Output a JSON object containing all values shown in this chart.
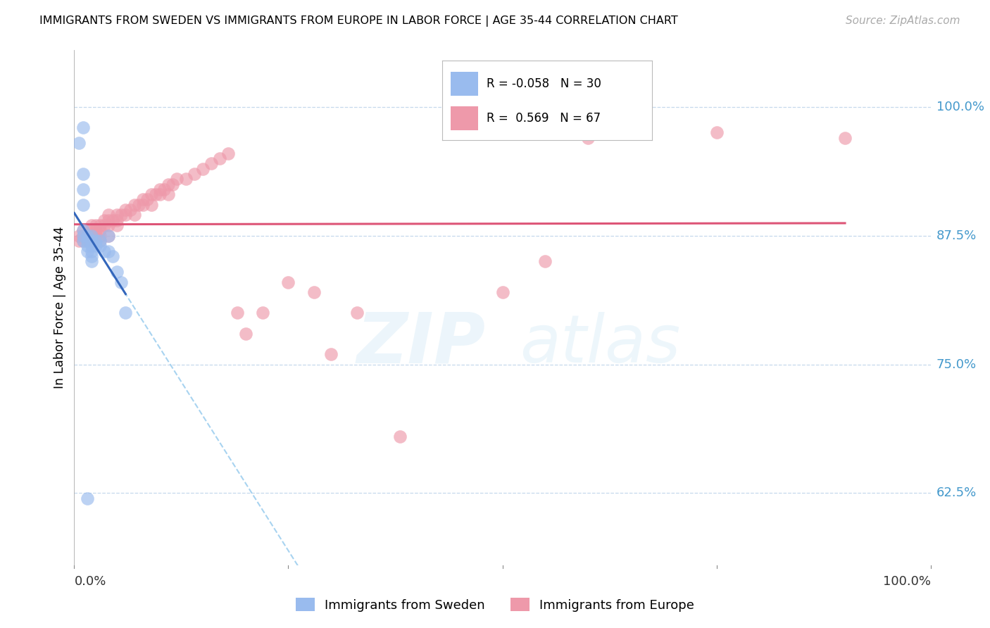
{
  "title": "IMMIGRANTS FROM SWEDEN VS IMMIGRANTS FROM EUROPE IN LABOR FORCE | AGE 35-44 CORRELATION CHART",
  "source": "Source: ZipAtlas.com",
  "ylabel": "In Labor Force | Age 35-44",
  "ytick_labels": [
    "100.0%",
    "87.5%",
    "75.0%",
    "62.5%"
  ],
  "ytick_values": [
    1.0,
    0.875,
    0.75,
    0.625
  ],
  "xlim": [
    0.0,
    1.0
  ],
  "ylim": [
    0.555,
    1.055
  ],
  "legend_sweden": "Immigrants from Sweden",
  "legend_europe": "Immigrants from Europe",
  "R_sweden": -0.058,
  "N_sweden": 30,
  "R_europe": 0.569,
  "N_europe": 67,
  "color_sweden": "#99bbee",
  "color_europe": "#ee99aa",
  "color_sweden_line": "#3366bb",
  "color_europe_line": "#dd5577",
  "color_sweden_dash": "#99ccee",
  "watermark_zip": "ZIP",
  "watermark_atlas": "atlas",
  "sweden_x": [
    0.005,
    0.01,
    0.01,
    0.01,
    0.01,
    0.01,
    0.01,
    0.01,
    0.015,
    0.015,
    0.015,
    0.015,
    0.02,
    0.02,
    0.02,
    0.02,
    0.02,
    0.02,
    0.025,
    0.025,
    0.03,
    0.03,
    0.035,
    0.04,
    0.04,
    0.045,
    0.05,
    0.055,
    0.06,
    0.015
  ],
  "sweden_y": [
    0.965,
    0.98,
    0.935,
    0.92,
    0.905,
    0.88,
    0.875,
    0.87,
    0.875,
    0.87,
    0.865,
    0.86,
    0.875,
    0.87,
    0.865,
    0.86,
    0.855,
    0.85,
    0.87,
    0.865,
    0.87,
    0.865,
    0.86,
    0.875,
    0.86,
    0.855,
    0.84,
    0.83,
    0.8,
    0.62
  ],
  "europe_x": [
    0.005,
    0.005,
    0.01,
    0.01,
    0.01,
    0.015,
    0.015,
    0.02,
    0.02,
    0.02,
    0.02,
    0.025,
    0.025,
    0.025,
    0.03,
    0.03,
    0.03,
    0.03,
    0.035,
    0.035,
    0.04,
    0.04,
    0.04,
    0.04,
    0.045,
    0.05,
    0.05,
    0.05,
    0.055,
    0.06,
    0.06,
    0.065,
    0.07,
    0.07,
    0.075,
    0.08,
    0.08,
    0.085,
    0.09,
    0.09,
    0.095,
    0.1,
    0.1,
    0.105,
    0.11,
    0.11,
    0.115,
    0.12,
    0.13,
    0.14,
    0.15,
    0.16,
    0.17,
    0.18,
    0.19,
    0.2,
    0.22,
    0.25,
    0.28,
    0.3,
    0.33,
    0.38,
    0.5,
    0.55,
    0.6,
    0.75,
    0.9
  ],
  "europe_y": [
    0.875,
    0.87,
    0.88,
    0.875,
    0.87,
    0.875,
    0.87,
    0.885,
    0.88,
    0.875,
    0.87,
    0.885,
    0.88,
    0.875,
    0.885,
    0.88,
    0.875,
    0.87,
    0.89,
    0.885,
    0.895,
    0.89,
    0.885,
    0.875,
    0.89,
    0.895,
    0.89,
    0.885,
    0.895,
    0.9,
    0.895,
    0.9,
    0.905,
    0.895,
    0.905,
    0.91,
    0.905,
    0.91,
    0.915,
    0.905,
    0.915,
    0.92,
    0.915,
    0.92,
    0.925,
    0.915,
    0.925,
    0.93,
    0.93,
    0.935,
    0.94,
    0.945,
    0.95,
    0.955,
    0.8,
    0.78,
    0.8,
    0.83,
    0.82,
    0.76,
    0.8,
    0.68,
    0.82,
    0.85,
    0.97,
    0.975,
    0.97
  ]
}
